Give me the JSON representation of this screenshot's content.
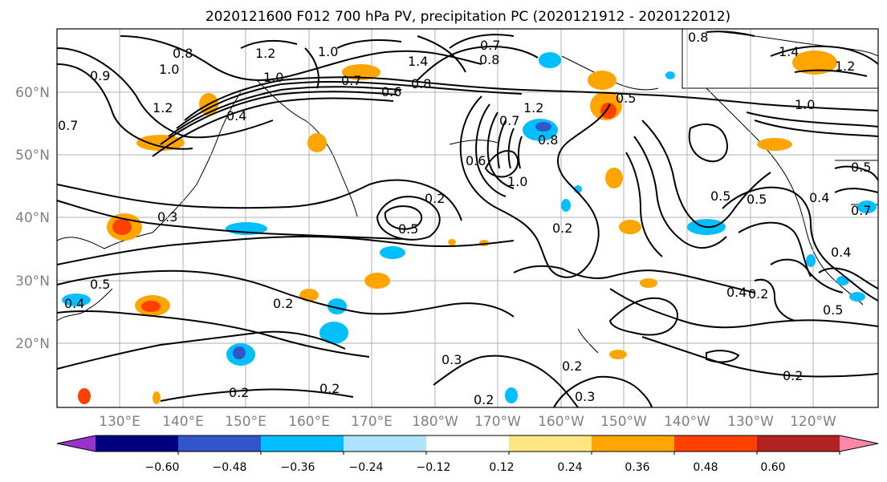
{
  "title": "2020121600 F012 700 hPa PV, precipitation PC (2020121912 - 2020122012)",
  "map": {
    "lat_labels": [
      "60°N",
      "50°N",
      "40°N",
      "30°N",
      "20°N"
    ],
    "lon_labels": [
      "130°E",
      "140°E",
      "150°E",
      "160°E",
      "170°E",
      "180°W",
      "170°W",
      "160°W",
      "150°W",
      "140°W",
      "130°W",
      "120°W"
    ],
    "contour_labels": [
      "0.8",
      "1.0",
      "1.2",
      "0.9",
      "1.0",
      "1.2",
      "1.4",
      "0.7",
      "0.8",
      "1.0",
      "1.4",
      "1.2",
      "0.8",
      "0.7",
      "0.6",
      "0.8",
      "0.4",
      "0.5",
      "0.7",
      "1.2",
      "0.7",
      "0.7",
      "0.8",
      "0.6",
      "0.2",
      "1.0",
      "0.5",
      "0.2",
      "0.5",
      "0.5",
      "1.0",
      "0.4",
      "0.5",
      "0.3",
      "0.5",
      "0.4",
      "0.2",
      "0.4",
      "0.2",
      "0.4",
      "0.5",
      "0.2",
      "0.3",
      "0.2",
      "0.2",
      "0.3",
      "0.2",
      "0.2"
    ]
  },
  "colorbar": {
    "ticks": [
      "−0.60",
      "−0.48",
      "−0.36",
      "−0.24",
      "−0.12",
      "0.12",
      "0.24",
      "0.36",
      "0.48",
      "0.60"
    ],
    "colors": [
      "#9933cc",
      "#000080",
      "#3355cc",
      "#00bfff",
      "#aee3ff",
      "#ffffff",
      "#ffe680",
      "#ffa500",
      "#ff4000",
      "#b22222",
      "#ff88aa"
    ]
  }
}
